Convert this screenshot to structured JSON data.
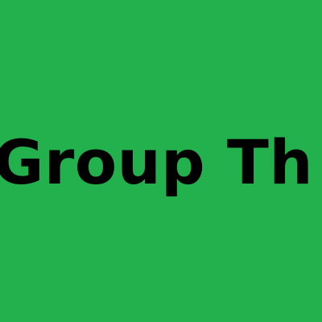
{
  "tile": {
    "background_color": "#22b14c",
    "text": "Group Th",
    "text_color": "#000000"
  }
}
